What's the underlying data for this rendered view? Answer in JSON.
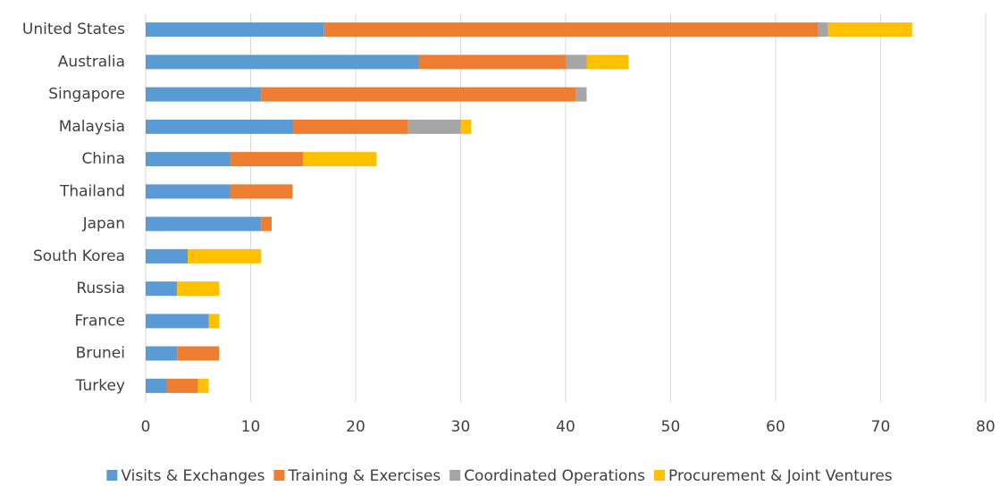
{
  "chart_data": {
    "type": "stacked-bar-horizontal",
    "categories": [
      "United States",
      "Australia",
      "Singapore",
      "Malaysia",
      "China",
      "Thailand",
      "Japan",
      "South Korea",
      "Russia",
      "France",
      "Brunei",
      "Turkey"
    ],
    "series": [
      {
        "name": "Visits & Exchanges",
        "color": "#5b9bd5",
        "values": [
          17,
          26,
          11,
          14,
          8,
          8,
          11,
          4,
          3,
          6,
          3,
          2
        ]
      },
      {
        "name": "Training & Exercises",
        "color": "#ed7d31",
        "values": [
          47,
          14,
          30,
          11,
          7,
          6,
          1,
          0,
          0,
          0,
          4,
          3
        ]
      },
      {
        "name": "Coordinated Operations",
        "color": "#a5a5a5",
        "values": [
          1,
          2,
          1,
          5,
          0,
          0,
          0,
          0,
          0,
          0,
          0,
          0
        ]
      },
      {
        "name": "Procurement & Joint Ventures",
        "color": "#ffc000",
        "values": [
          8,
          4,
          0,
          1,
          7,
          0,
          0,
          7,
          4,
          1,
          0,
          1
        ]
      }
    ],
    "xlim": [
      0,
      80
    ],
    "xticks": [
      0,
      10,
      20,
      30,
      40,
      50,
      60,
      70,
      80
    ],
    "grid": true,
    "legend": "bottom"
  }
}
